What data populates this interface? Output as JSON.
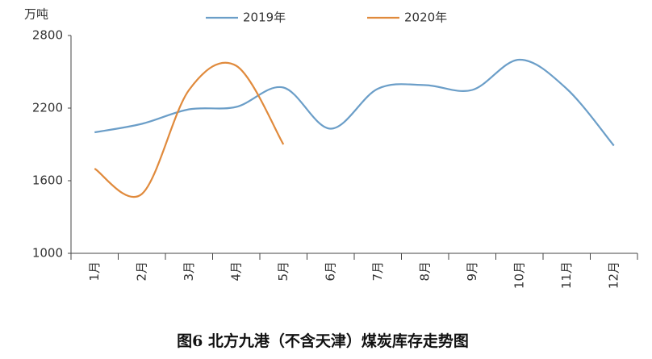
{
  "chart_data": {
    "type": "line",
    "caption": "图6 北方九港（不含天津）煤炭库存走势图",
    "y_unit": "万吨",
    "categories": [
      "1月",
      "2月",
      "3月",
      "4月",
      "5月",
      "6月",
      "7月",
      "8月",
      "9月",
      "10月",
      "11月",
      "12月"
    ],
    "series": [
      {
        "name": "2019年",
        "color": "#6b9ec8",
        "values": [
          2000,
          2070,
          2190,
          2210,
          2370,
          2030,
          2360,
          2390,
          2350,
          2600,
          2360,
          1890
        ]
      },
      {
        "name": "2020年",
        "color": "#e08a3c",
        "values": [
          1700,
          1490,
          2350,
          2550,
          1900,
          null,
          null,
          null,
          null,
          null,
          null,
          null
        ]
      }
    ],
    "ylim": [
      1000,
      2800
    ],
    "yticks": [
      1000,
      1600,
      2200,
      2800
    ],
    "legend": "top"
  }
}
